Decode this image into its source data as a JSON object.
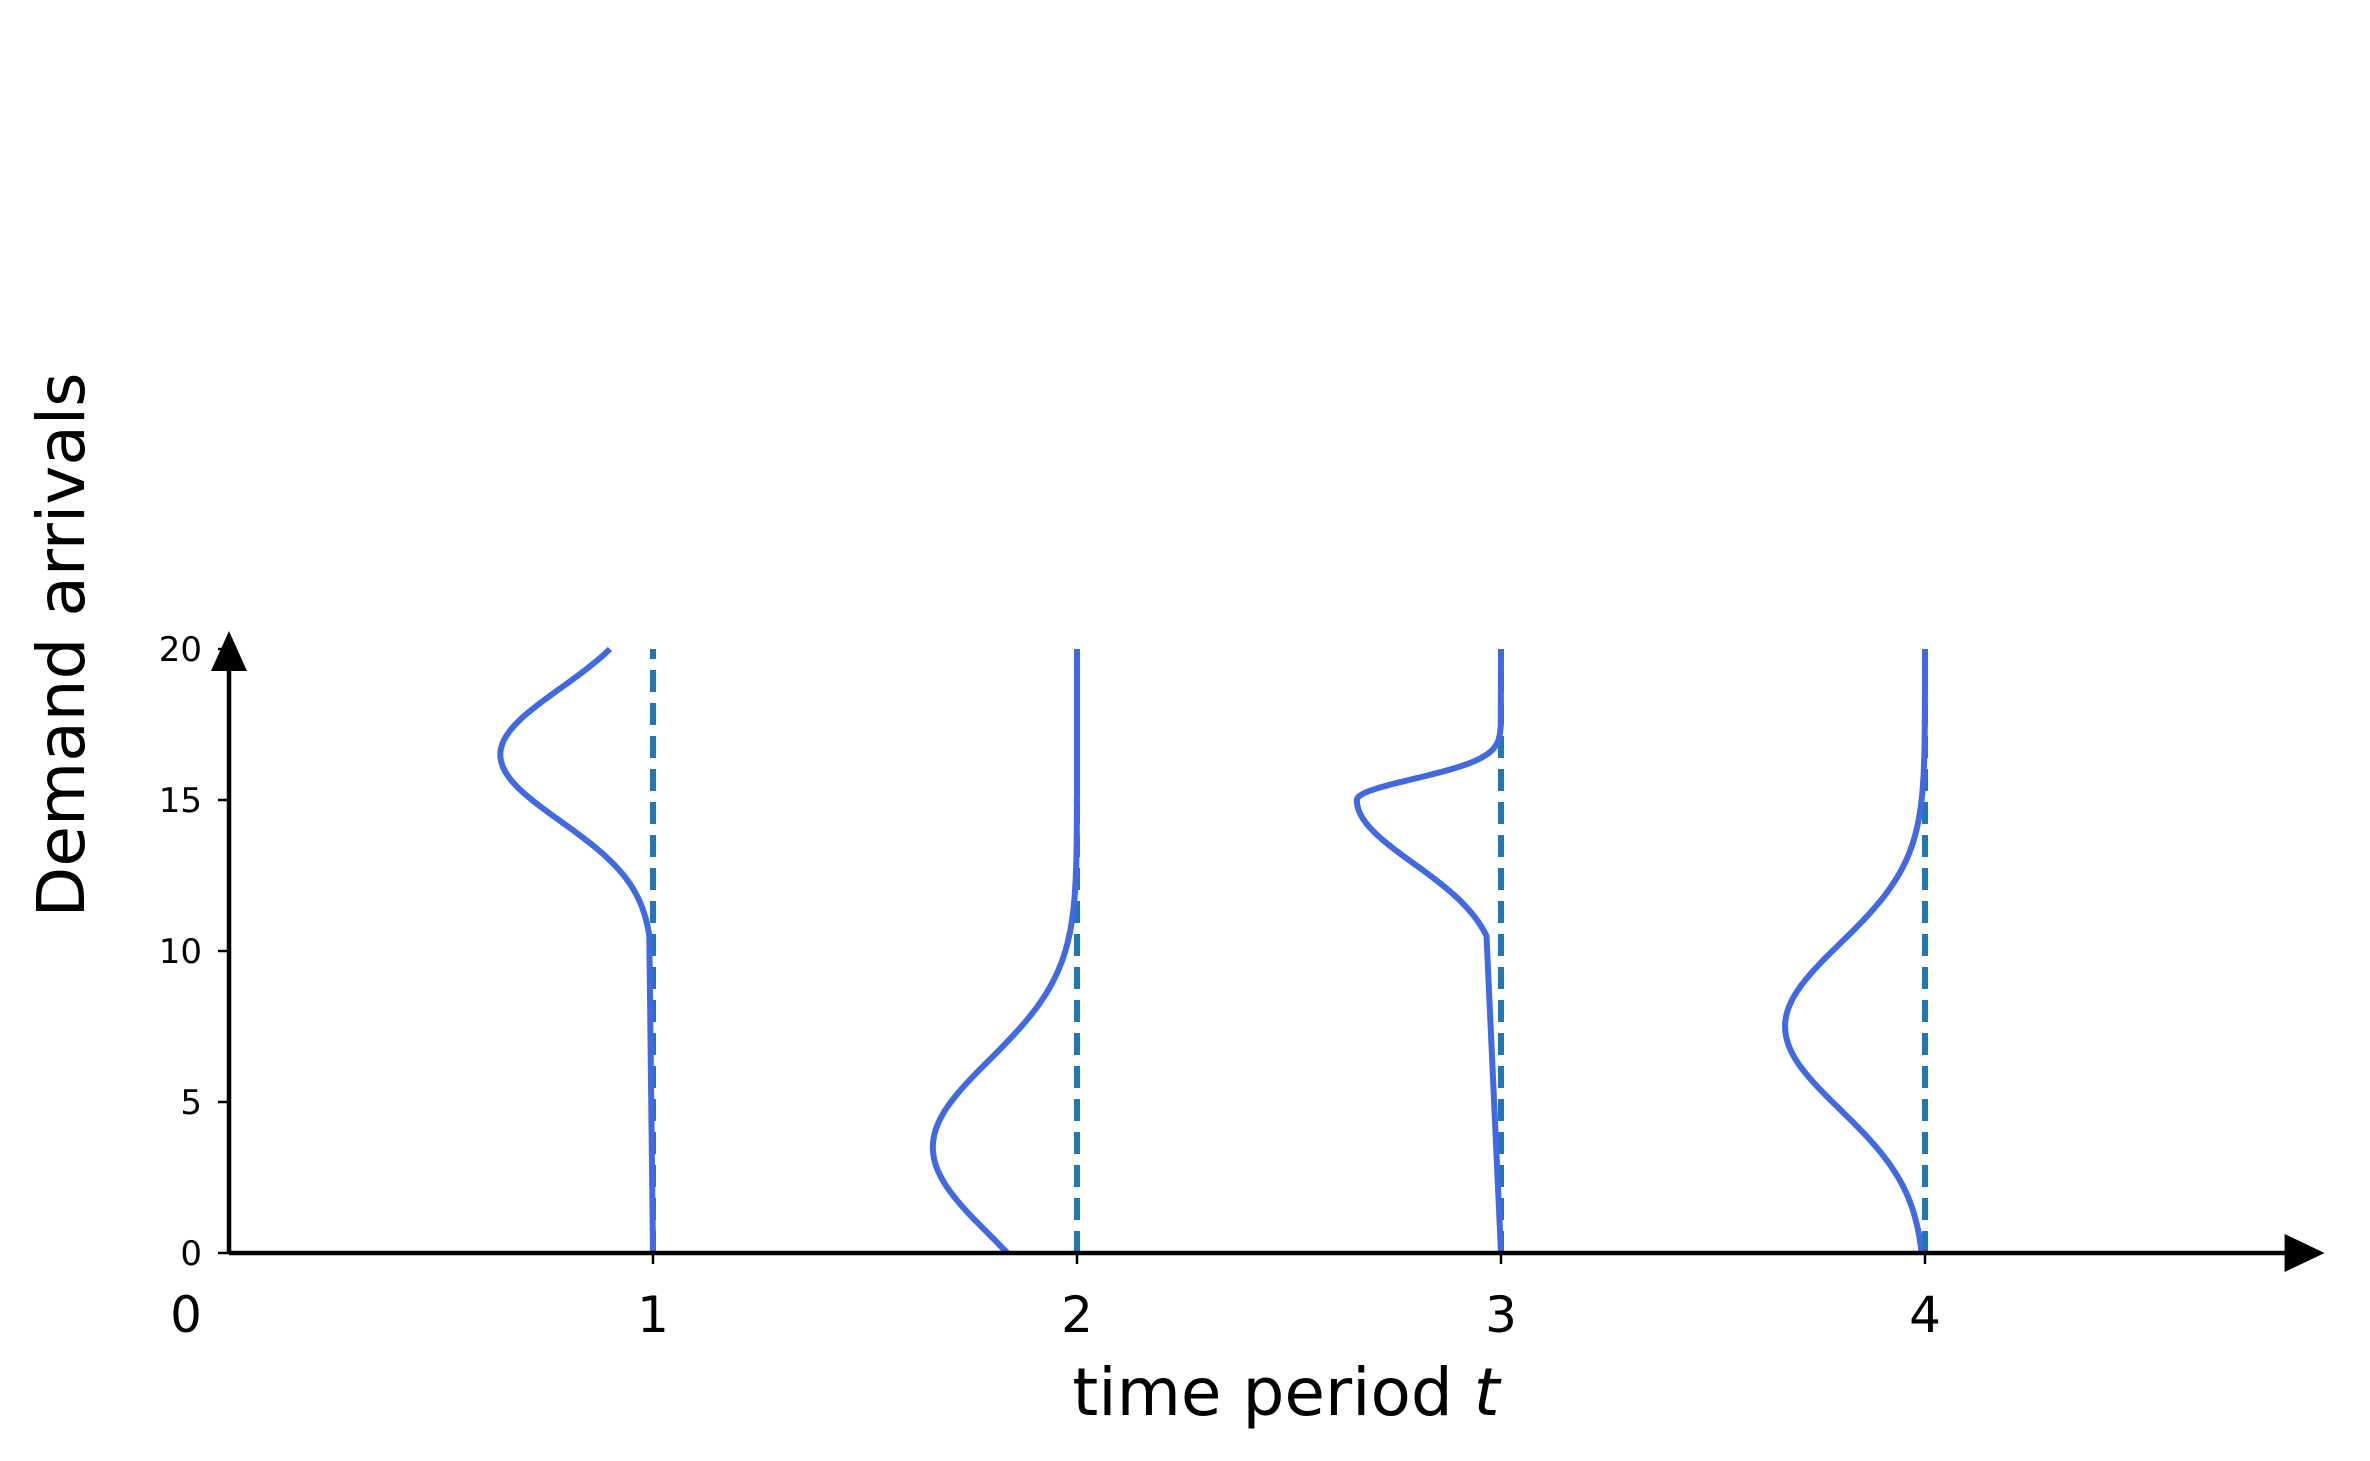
{
  "chart_data": {
    "type": "line",
    "xlabel": "time period",
    "xlabel_variable": "t",
    "ylabel": "Demand arrivals",
    "xlim": [
      0,
      4.9
    ],
    "ylim": [
      0,
      20
    ],
    "x_ticks": [
      1,
      2,
      3,
      4
    ],
    "x_origin_label": "0",
    "y_ticks": [
      0,
      5,
      10,
      15,
      20
    ],
    "grid": false,
    "legend": "none",
    "colors": {
      "density": "#4169E1",
      "dashed": "#1F77B4",
      "axis": "#000000"
    },
    "series": [
      {
        "period": 1,
        "kind": "right-truncated normal density",
        "mean": 16.5,
        "sd": 2.2,
        "support": [
          10.5,
          20
        ],
        "peak_x": 0.64
      },
      {
        "period": 2,
        "kind": "left-truncated normal density",
        "mean": 3.5,
        "sd": 2.9,
        "support": [
          0,
          20
        ],
        "peak_x": 1.66
      },
      {
        "period": 3,
        "kind": "asymmetric two-piece density",
        "mean": 15.0,
        "sd_left": 2.1,
        "sd_right": 0.7,
        "support": [
          10.5,
          17.5
        ],
        "peak_x": 2.66
      },
      {
        "period": 4,
        "kind": "normal density",
        "mean": 7.5,
        "sd": 2.75,
        "support": [
          0,
          20
        ],
        "peak_x": 3.67
      }
    ]
  }
}
